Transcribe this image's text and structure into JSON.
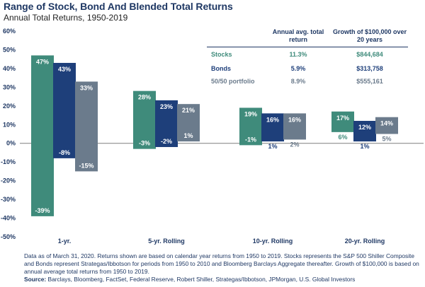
{
  "header": {
    "title": "Range of Stock, Bond And Blended Total Returns",
    "subtitle": "Annual Total Returns, 1950-2019"
  },
  "colors": {
    "stocks": "#3f8b7b",
    "bonds": "#1e3f7a",
    "blend": "#6b7b8c",
    "text": "#1f3864"
  },
  "chart_data": {
    "type": "bar",
    "subtype": "floating-range",
    "ylim": [
      -50,
      60
    ],
    "yticks": [
      "-50%",
      "-40%",
      "-30%",
      "-20%",
      "-10%",
      "0%",
      "10%",
      "20%",
      "30%",
      "40%",
      "50%",
      "60%"
    ],
    "categories": [
      "1-yr.",
      "5-yr. Rolling",
      "10-yr. Rolling",
      "20-yr. Rolling"
    ],
    "series": [
      {
        "name": "Stocks",
        "max": [
          47,
          28,
          19,
          17
        ],
        "min": [
          -39,
          -3,
          -1,
          6
        ],
        "max_labels": [
          "47%",
          "28%",
          "19%",
          "17%"
        ],
        "min_labels": [
          "-39%",
          "-3%",
          "-1%",
          "6%"
        ]
      },
      {
        "name": "Bonds",
        "max": [
          43,
          23,
          16,
          12
        ],
        "min": [
          -8,
          -2,
          1,
          1
        ],
        "max_labels": [
          "43%",
          "23%",
          "16%",
          "12%"
        ],
        "min_labels": [
          "-8%",
          "-2%",
          "1%",
          "1%"
        ]
      },
      {
        "name": "50/50 portfolio",
        "max": [
          33,
          21,
          16,
          14
        ],
        "min": [
          -15,
          1,
          2,
          5
        ],
        "max_labels": [
          "33%",
          "21%",
          "16%",
          "14%"
        ],
        "min_labels": [
          "-15%",
          "1%",
          "2%",
          "5%"
        ]
      }
    ]
  },
  "table": {
    "col1_header": "Annual avg. total return",
    "col2_header": "Growth of $100,000 over 20 years",
    "rows": [
      {
        "label": "Stocks",
        "avg": "11.3%",
        "growth": "$844,684"
      },
      {
        "label": "Bonds",
        "avg": "5.9%",
        "growth": "$313,758"
      },
      {
        "label": "50/50 portfolio",
        "avg": "8.9%",
        "growth": "$555,161"
      }
    ]
  },
  "footnote": {
    "text": "Data as of March 31, 2020. Returns shown are based on calendar year returns from 1950 to 2019. Stocks represents the S&P 500 Shiller Composite and Bonds represent Strategas/Ibbotson for periods from 1950 to 2010 and Bloomberg Barclays Aggregate thereafter. Growth of $100,000 is based on annual average total returns from 1950 to 2019.",
    "source_label": "Source:",
    "source_text": "Barclays, Bloomberg, FactSet, Federal Reserve, Robert Shiller, Strategas/Ibbotson, JPMorgan, U.S. Global Investors"
  }
}
